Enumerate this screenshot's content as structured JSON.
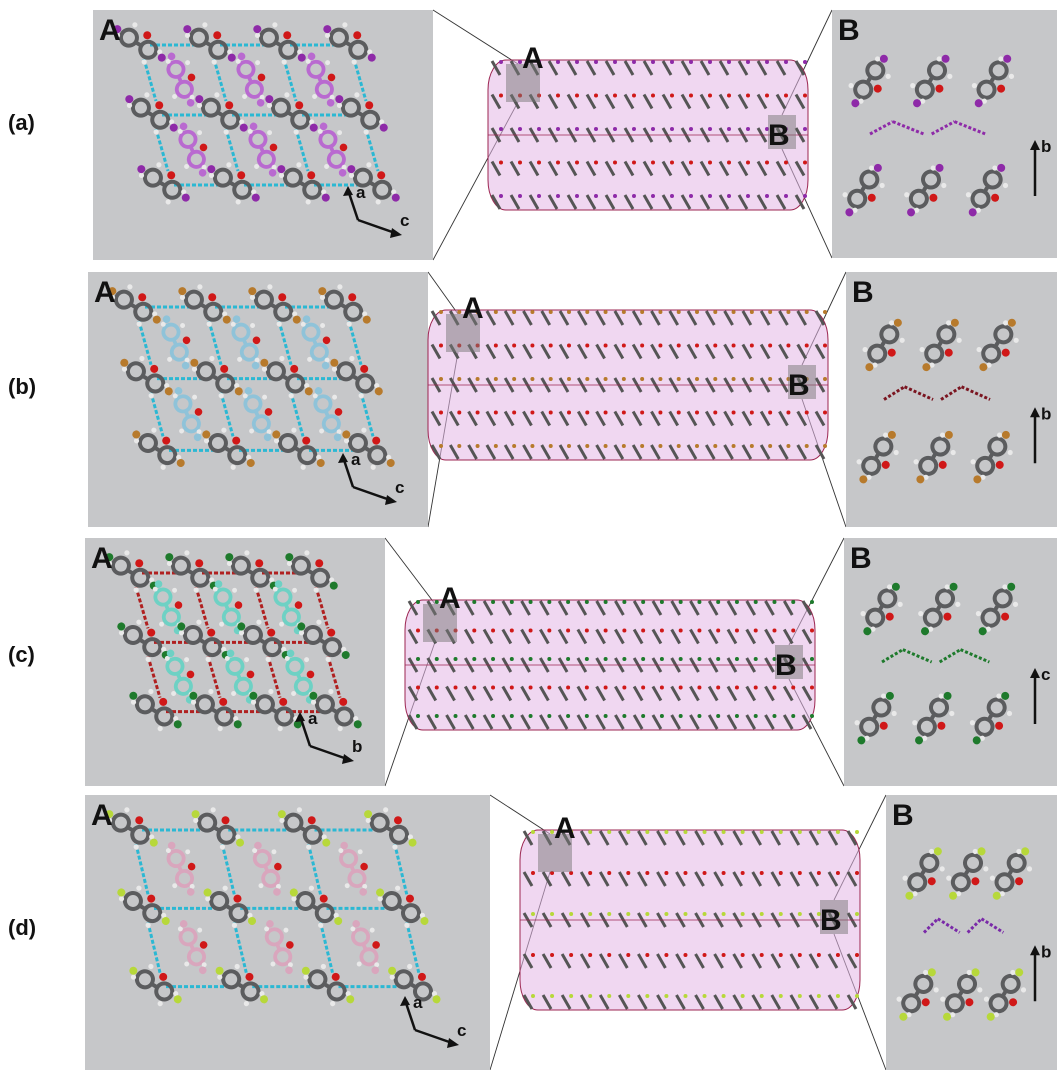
{
  "rows": [
    {
      "label": "(a)",
      "left_letter": "A",
      "right_letter": "B",
      "col_letter_a": "A",
      "col_letter_b": "B",
      "left_axes": [
        "a",
        "c"
      ],
      "right_axes": [
        "b"
      ],
      "highlight_color": "#b96ad0",
      "heavy_color": "#8e2aa8",
      "hbond_color": "#2bb8d3",
      "halogen_color": "#8e2aa8"
    },
    {
      "label": "(b)",
      "left_letter": "A",
      "right_letter": "B",
      "col_letter_a": "A",
      "col_letter_b": "B",
      "left_axes": [
        "a",
        "c"
      ],
      "right_axes": [
        "b"
      ],
      "highlight_color": "#8fc3d9",
      "heavy_color": "#b77a2c",
      "hbond_color": "#2bb8d3",
      "halogen_color": "#7a1520"
    },
    {
      "label": "(c)",
      "left_letter": "A",
      "right_letter": "B",
      "col_letter_a": "A",
      "col_letter_b": "B",
      "left_axes": [
        "a",
        "b"
      ],
      "right_axes": [
        "c"
      ],
      "highlight_color": "#6ed1c4",
      "heavy_color": "#1e7a2c",
      "hbond_color": "#b02020",
      "halogen_color": "#1e7a2c"
    },
    {
      "label": "(d)",
      "left_letter": "A",
      "right_letter": "B",
      "col_letter_a": "A",
      "col_letter_b": "B",
      "left_axes": [
        "a",
        "c"
      ],
      "right_axes": [
        "b"
      ],
      "highlight_color": "#d9a6bd",
      "heavy_color": "#b7d83a",
      "hbond_color": "#2bb8d3",
      "halogen_color": "#7a2aa8"
    }
  ],
  "colors": {
    "panel_bg": "#c6c7c9",
    "carbon": "#5b5c5e",
    "hydrogen": "#e9e9e9",
    "oxygen": "#d01818",
    "tube_fill": "#e3b6e6",
    "tube_edge": "#9b2450"
  }
}
